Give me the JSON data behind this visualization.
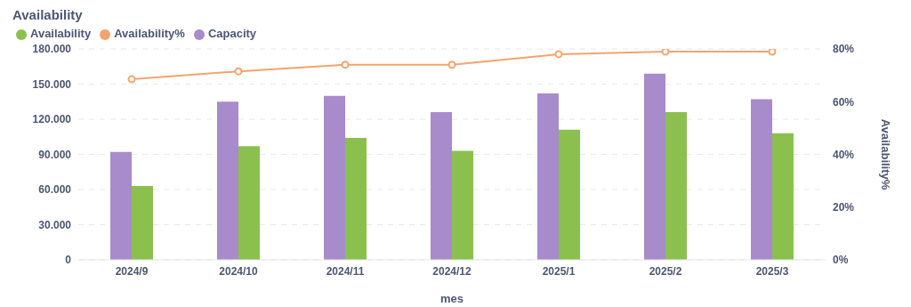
{
  "chart_data": {
    "type": "bar",
    "title": "Availability",
    "xlabel": "mes",
    "y2label": "Availability%",
    "categories": [
      "2024/9",
      "2024/10",
      "2024/11",
      "2024/12",
      "2025/1",
      "2025/2",
      "2025/3"
    ],
    "series": [
      {
        "name": "Capacity",
        "color": "#a78bca",
        "values": [
          92000,
          135000,
          140000,
          126000,
          142000,
          159000,
          137000
        ]
      },
      {
        "name": "Availability",
        "color": "#8bc04f",
        "values": [
          63000,
          97000,
          104000,
          93000,
          111000,
          126000,
          108000
        ]
      },
      {
        "name": "Availability%",
        "type": "line",
        "axis": "y2",
        "color": "#f4a46f",
        "values": [
          68.5,
          71.5,
          74,
          74,
          78,
          79,
          79
        ]
      }
    ],
    "ylim": [
      0,
      180000
    ],
    "yticks": [
      {
        "value": 0,
        "label": "0"
      },
      {
        "value": 30000,
        "label": "30.000"
      },
      {
        "value": 60000,
        "label": "60.000"
      },
      {
        "value": 90000,
        "label": "90.000"
      },
      {
        "value": 120000,
        "label": "120.000"
      },
      {
        "value": 150000,
        "label": "150.000"
      },
      {
        "value": 180000,
        "label": "180.000"
      }
    ],
    "y2lim": [
      0,
      80
    ],
    "y2ticks": [
      {
        "value": 0,
        "label": "0%"
      },
      {
        "value": 20,
        "label": "20%"
      },
      {
        "value": 40,
        "label": "40%"
      },
      {
        "value": 60,
        "label": "60%"
      },
      {
        "value": 80,
        "label": "80%"
      }
    ],
    "grid": "y",
    "legend": "top left",
    "marker": "circle",
    "line_style": "solid"
  }
}
